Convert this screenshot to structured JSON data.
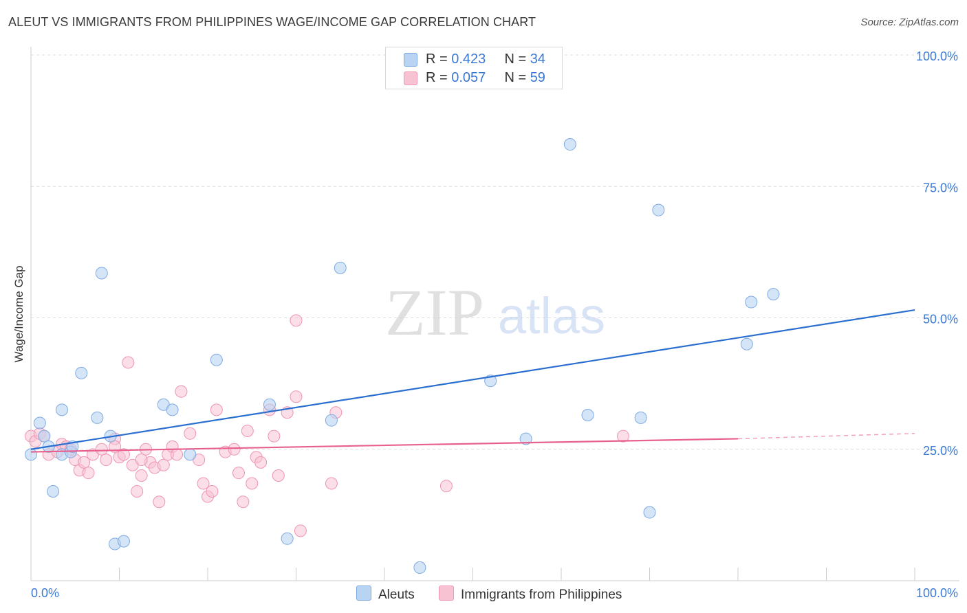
{
  "title": "ALEUT VS IMMIGRANTS FROM PHILIPPINES WAGE/INCOME GAP CORRELATION CHART",
  "source": "Source: ZipAtlas.com",
  "watermark": {
    "zip": "ZIP",
    "atlas": "atlas"
  },
  "legend": {
    "aleut": {
      "r_label": "R = ",
      "r_value": "0.423",
      "n_label": "N = ",
      "n_value": "34"
    },
    "phil": {
      "r_label": "R = ",
      "r_value": "0.057",
      "n_label": "N = ",
      "n_value": "59"
    }
  },
  "colors": {
    "aleut_fill": "#b9d3f3",
    "aleut_stroke": "#7eaae3",
    "aleut_line": "#2a6fd0",
    "phil_fill": "#f7c3d3",
    "phil_stroke": "#ee96b2",
    "phil_line": "#e8608e",
    "tick_label": "#3a78d4",
    "grid": "#dedede"
  },
  "chart_data": {
    "type": "scatter",
    "xlabel": "",
    "ylabel": "Wage/Income Gap",
    "xlim": [
      0,
      100
    ],
    "ylim": [
      0,
      100
    ],
    "x_tick_labels": [
      "0.0%",
      "100.0%"
    ],
    "y_tick_labels": [
      "25.0%",
      "50.0%",
      "75.0%",
      "100.0%"
    ],
    "y_ticks": [
      25,
      50,
      75,
      100
    ],
    "grid": true,
    "legend_position": "top-center",
    "series": [
      {
        "name": "Aleuts",
        "points": [
          [
            0,
            24
          ],
          [
            1,
            30
          ],
          [
            1.5,
            27.5
          ],
          [
            2,
            25.5
          ],
          [
            2.5,
            17
          ],
          [
            3.5,
            24
          ],
          [
            3.5,
            32.5
          ],
          [
            4.5,
            24.5
          ],
          [
            4.7,
            25.5
          ],
          [
            5.7,
            39.5
          ],
          [
            7.5,
            31
          ],
          [
            8,
            58.5
          ],
          [
            9,
            27.5
          ],
          [
            9.5,
            7
          ],
          [
            10.5,
            7.5
          ],
          [
            15,
            33.5
          ],
          [
            16,
            32.5
          ],
          [
            18,
            24
          ],
          [
            21,
            42
          ],
          [
            27,
            33.5
          ],
          [
            29,
            8
          ],
          [
            35,
            59.5
          ],
          [
            34,
            30.5
          ],
          [
            44,
            2.5
          ],
          [
            52,
            38
          ],
          [
            56,
            27
          ],
          [
            61,
            83
          ],
          [
            63,
            31.5
          ],
          [
            69,
            31
          ],
          [
            70,
            13
          ],
          [
            71,
            70.5
          ],
          [
            81,
            45
          ],
          [
            81.5,
            53
          ],
          [
            84,
            54.5
          ]
        ]
      },
      {
        "name": "Immigrants from Philippines",
        "points": [
          [
            0,
            27.5
          ],
          [
            0.5,
            26.5
          ],
          [
            1,
            28
          ],
          [
            1.5,
            27.5
          ],
          [
            2,
            24
          ],
          [
            3,
            24.5
          ],
          [
            3.5,
            26
          ],
          [
            4,
            25.5
          ],
          [
            4.5,
            25
          ],
          [
            5,
            23
          ],
          [
            5.5,
            21
          ],
          [
            6,
            22.5
          ],
          [
            6.5,
            20.5
          ],
          [
            7,
            24
          ],
          [
            8,
            25
          ],
          [
            8.5,
            23
          ],
          [
            9.5,
            27
          ],
          [
            10,
            23.5
          ],
          [
            10.5,
            24
          ],
          [
            11,
            41.5
          ],
          [
            11.5,
            22
          ],
          [
            12,
            17
          ],
          [
            12.5,
            20
          ],
          [
            13,
            25
          ],
          [
            13.5,
            22.5
          ],
          [
            14,
            21.5
          ],
          [
            14.5,
            15
          ],
          [
            15,
            22
          ],
          [
            15.5,
            24
          ],
          [
            16,
            25.5
          ],
          [
            16.5,
            24
          ],
          [
            17,
            36
          ],
          [
            18,
            28
          ],
          [
            19,
            23
          ],
          [
            19.5,
            18.5
          ],
          [
            20,
            16
          ],
          [
            20.5,
            17
          ],
          [
            21,
            32.5
          ],
          [
            22,
            24.5
          ],
          [
            23,
            25
          ],
          [
            23.5,
            20.5
          ],
          [
            24,
            15
          ],
          [
            24.5,
            28.5
          ],
          [
            25,
            18.5
          ],
          [
            25.5,
            23.5
          ],
          [
            26,
            22.5
          ],
          [
            27,
            32.5
          ],
          [
            27.5,
            27.5
          ],
          [
            28,
            20
          ],
          [
            29,
            32
          ],
          [
            30,
            35
          ],
          [
            30.5,
            9.5
          ],
          [
            30,
            49.5
          ],
          [
            34,
            18.5
          ],
          [
            34.5,
            32
          ],
          [
            47,
            18
          ],
          [
            67,
            27.5
          ],
          [
            9.5,
            25.5
          ],
          [
            12.5,
            23
          ]
        ]
      }
    ],
    "trend_lines": [
      {
        "series": "Aleuts",
        "x": [
          0,
          100
        ],
        "y": [
          25,
          51.5
        ]
      },
      {
        "series": "Immigrants from Philippines",
        "x": [
          0,
          80,
          100
        ],
        "y": [
          24.5,
          27,
          28
        ]
      }
    ]
  }
}
